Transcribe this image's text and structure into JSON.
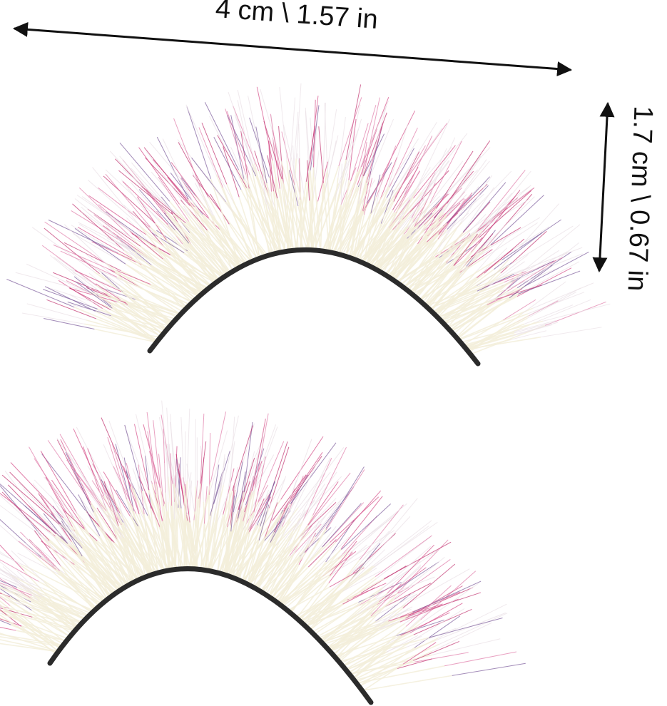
{
  "dimensions": {
    "width_label": "4 cm \\ 1.57 in",
    "height_label": "1.7 cm \\ 0.67 in"
  }
}
